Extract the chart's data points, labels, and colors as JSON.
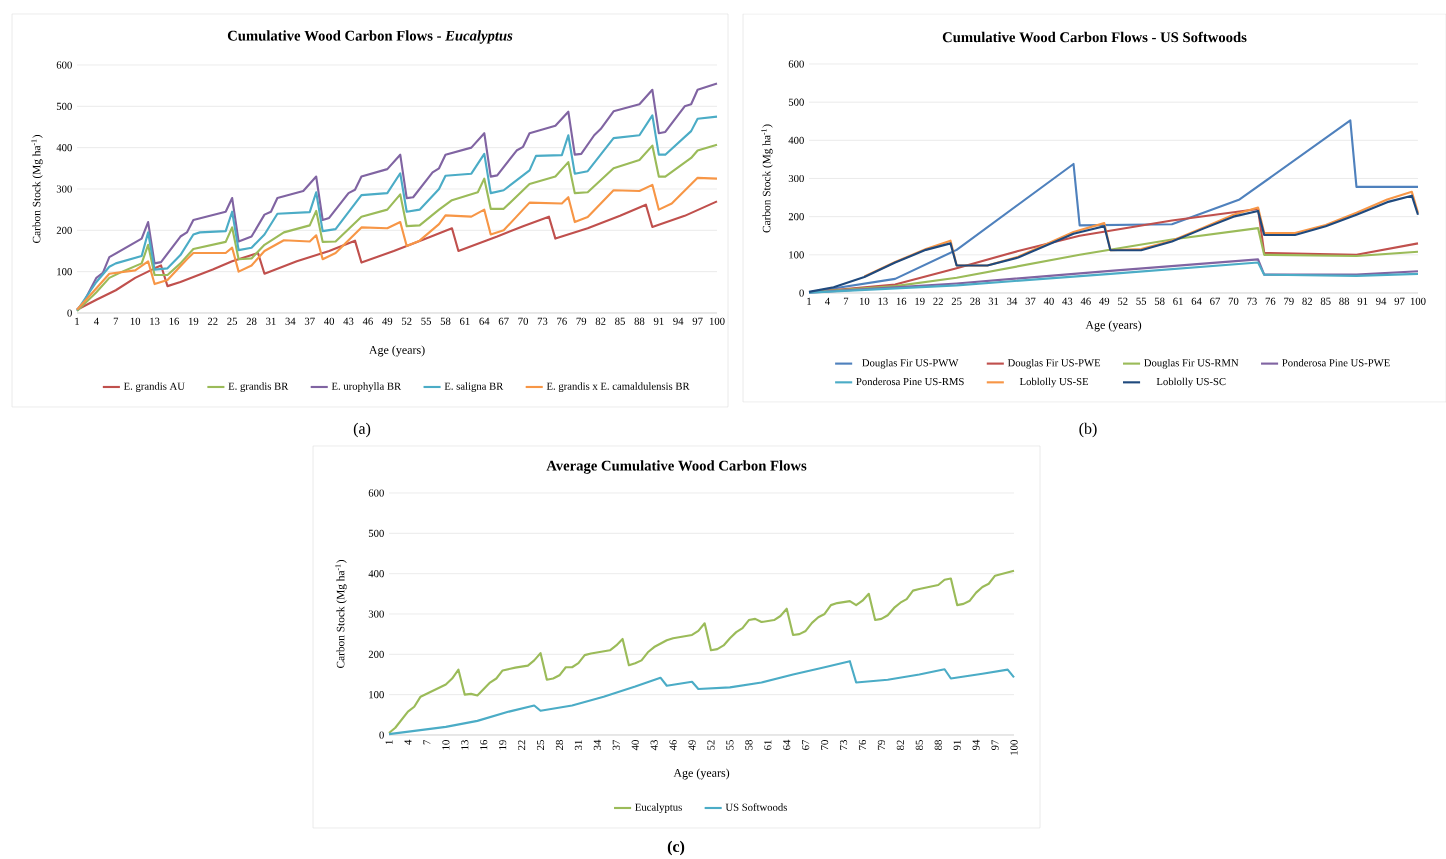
{
  "chart_data": [
    {
      "type": "line",
      "title": "Cumulative Wood Carbon Flows - *Eucalyptus*",
      "xlabel": "Age (years)",
      "ylabel": "Carbon Stock (Mg ha$^{-1}$)",
      "xlim": [
        1,
        100
      ],
      "ylim": [
        0,
        600
      ],
      "xticks": [
        1,
        4,
        7,
        10,
        13,
        16,
        19,
        22,
        25,
        28,
        31,
        34,
        37,
        40,
        43,
        46,
        49,
        52,
        55,
        58,
        61,
        64,
        67,
        70,
        73,
        76,
        79,
        82,
        85,
        88,
        91,
        94,
        97,
        100
      ],
      "yticks": [
        0,
        100,
        200,
        300,
        400,
        500,
        600
      ],
      "grid": "y",
      "legend": "bottom",
      "annotations": [
        "(a)"
      ],
      "series": [
        {
          "name": "E. grandis AU",
          "color": "#c0504d",
          "x": [
            1,
            4,
            7,
            10,
            13,
            14,
            15,
            17,
            22,
            25,
            29,
            30,
            35,
            40,
            44,
            45,
            50,
            55,
            59,
            60,
            66,
            70,
            74,
            75,
            80,
            85,
            89,
            90,
            95,
            100
          ],
          "values": [
            8,
            32,
            55,
            85,
            108,
            115,
            65,
            75,
            105,
            125,
            145,
            95,
            125,
            150,
            175,
            122,
            150,
            180,
            205,
            150,
            185,
            210,
            233,
            180,
            205,
            235,
            262,
            208,
            235,
            270
          ]
        },
        {
          "name": "E. grandis BR",
          "color": "#9bbb59",
          "x": [
            1,
            4,
            6,
            8,
            11,
            12,
            13,
            15,
            17,
            19,
            24,
            25,
            26,
            28,
            30,
            33,
            37,
            38,
            39,
            41,
            45,
            49,
            51,
            52,
            54,
            57,
            59,
            63,
            64,
            65,
            67,
            71,
            75,
            77,
            78,
            80,
            84,
            88,
            90,
            91,
            92,
            96,
            97,
            100
          ],
          "values": [
            5,
            50,
            85,
            100,
            120,
            165,
            92,
            92,
            120,
            155,
            172,
            207,
            130,
            132,
            165,
            195,
            212,
            247,
            172,
            173,
            233,
            250,
            287,
            210,
            212,
            250,
            273,
            292,
            325,
            252,
            252,
            312,
            330,
            365,
            290,
            292,
            350,
            370,
            405,
            330,
            330,
            375,
            393,
            407
          ]
        },
        {
          "name": "E. urophylla BR",
          "color": "#8064a2",
          "x": [
            1,
            2,
            4,
            5,
            6,
            11,
            12,
            13,
            14,
            17,
            18,
            19,
            24,
            25,
            26,
            28,
            30,
            31,
            32,
            36,
            38,
            39,
            40,
            43,
            44,
            45,
            49,
            51,
            52,
            53,
            56,
            57,
            58,
            62,
            64,
            65,
            66,
            69,
            70,
            71,
            75,
            77,
            78,
            79,
            81,
            82,
            84,
            88,
            90,
            91,
            92,
            95,
            96,
            97,
            100
          ],
          "values": [
            8,
            25,
            85,
            97,
            135,
            180,
            220,
            120,
            123,
            185,
            195,
            225,
            245,
            278,
            173,
            185,
            238,
            245,
            278,
            295,
            330,
            225,
            230,
            290,
            298,
            330,
            348,
            383,
            278,
            280,
            340,
            350,
            383,
            400,
            435,
            330,
            333,
            393,
            402,
            435,
            453,
            487,
            383,
            385,
            430,
            445,
            488,
            505,
            540,
            435,
            438,
            500,
            505,
            540,
            555
          ]
        },
        {
          "name": "E. saligna BR",
          "color": "#4bacc6",
          "x": [
            1,
            4,
            6,
            7,
            11,
            12,
            13,
            15,
            17,
            19,
            20,
            24,
            25,
            26,
            28,
            30,
            32,
            37,
            38,
            39,
            41,
            45,
            49,
            51,
            52,
            54,
            57,
            58,
            62,
            64,
            65,
            67,
            71,
            72,
            76,
            77,
            78,
            80,
            84,
            88,
            90,
            91,
            92,
            96,
            97,
            100
          ],
          "values": [
            6,
            75,
            112,
            120,
            138,
            195,
            105,
            108,
            140,
            190,
            195,
            198,
            245,
            152,
            158,
            190,
            240,
            244,
            292,
            198,
            203,
            285,
            290,
            338,
            245,
            250,
            300,
            332,
            337,
            385,
            290,
            297,
            345,
            380,
            382,
            430,
            337,
            343,
            423,
            430,
            478,
            383,
            383,
            440,
            470,
            475
          ]
        },
        {
          "name": "E. grandis x E. camaldulensis BR",
          "color": "#f79646",
          "x": [
            1,
            4,
            6,
            10,
            12,
            13,
            15,
            18,
            19,
            24,
            25,
            26,
            28,
            30,
            33,
            37,
            38,
            39,
            41,
            45,
            49,
            51,
            52,
            54,
            57,
            58,
            62,
            64,
            65,
            67,
            71,
            76,
            77,
            78,
            80,
            84,
            88,
            90,
            91,
            93,
            97,
            100
          ],
          "values": [
            8,
            60,
            95,
            103,
            125,
            70,
            80,
            130,
            145,
            145,
            158,
            100,
            115,
            150,
            176,
            173,
            188,
            130,
            145,
            207,
            205,
            220,
            162,
            175,
            215,
            236,
            233,
            250,
            190,
            200,
            267,
            265,
            280,
            220,
            232,
            297,
            295,
            310,
            250,
            265,
            327,
            325
          ]
        }
      ]
    },
    {
      "type": "line",
      "title": "Cumulative Wood Carbon Flows - US Softwoods",
      "xlabel": "Age (years)",
      "ylabel": "Carbon Stock (Mg ha$^{-1}$)",
      "xlim": [
        1,
        100
      ],
      "ylim": [
        0,
        600
      ],
      "xticks": [
        1,
        4,
        7,
        10,
        13,
        16,
        19,
        22,
        25,
        28,
        31,
        34,
        37,
        40,
        43,
        46,
        49,
        52,
        55,
        58,
        61,
        64,
        67,
        70,
        73,
        76,
        79,
        82,
        85,
        88,
        91,
        94,
        97,
        100
      ],
      "yticks": [
        0,
        100,
        200,
        300,
        400,
        500,
        600
      ],
      "grid": "y",
      "legend": "bottom",
      "annotations": [
        "(b)"
      ],
      "series": [
        {
          "name": "Douglas Fir US-PWW",
          "color": "#4f81bd",
          "x": [
            1,
            15,
            25,
            44,
            45,
            60,
            71,
            89,
            90,
            100
          ],
          "values": [
            2,
            37,
            113,
            338,
            177,
            180,
            245,
            452,
            278,
            278
          ]
        },
        {
          "name": "Douglas Fir US-PWE",
          "color": "#c0504d",
          "x": [
            1,
            15,
            25,
            35,
            45,
            60,
            74,
            75,
            90,
            100
          ],
          "values": [
            2,
            22,
            65,
            110,
            150,
            190,
            220,
            105,
            100,
            130
          ]
        },
        {
          "name": "Douglas Fir US-RMN",
          "color": "#9bbb59",
          "x": [
            1,
            15,
            25,
            45,
            60,
            74,
            75,
            90,
            100
          ],
          "values": [
            2,
            18,
            40,
            100,
            140,
            170,
            100,
            97,
            108
          ]
        },
        {
          "name": "Ponderosa Pine US-PWE",
          "color": "#8064a2",
          "x": [
            1,
            25,
            50,
            74,
            75,
            90,
            100
          ],
          "values": [
            1,
            25,
            58,
            88,
            48,
            48,
            57
          ]
        },
        {
          "name": "Ponderosa Pine US-RMS",
          "color": "#4bacc6",
          "x": [
            1,
            25,
            50,
            74,
            75,
            90,
            100
          ],
          "values": [
            1,
            20,
            50,
            80,
            48,
            45,
            50
          ]
        },
        {
          "name": "Loblolly US-SE",
          "color": "#f79646",
          "x": [
            10,
            15,
            20,
            24,
            25,
            30,
            35,
            44,
            49,
            50,
            55,
            60,
            65,
            70,
            74,
            75,
            80,
            85,
            90,
            95,
            99,
            100
          ],
          "values": [
            43,
            81,
            115,
            137,
            72,
            72,
            95,
            160,
            183,
            112,
            115,
            137,
            170,
            205,
            224,
            157,
            157,
            178,
            210,
            245,
            265,
            210
          ]
        },
        {
          "name": "Loblolly US-SC",
          "color": "#1f497d",
          "x": [
            1,
            5,
            10,
            15,
            20,
            24,
            25,
            30,
            35,
            44,
            49,
            50,
            55,
            60,
            65,
            70,
            74,
            75,
            80,
            85,
            90,
            95,
            99,
            100
          ],
          "values": [
            3,
            15,
            42,
            80,
            113,
            130,
            72,
            72,
            93,
            155,
            175,
            112,
            112,
            135,
            168,
            200,
            215,
            152,
            152,
            175,
            205,
            238,
            255,
            205
          ]
        }
      ]
    },
    {
      "type": "line",
      "title": "Average Cumulative Wood Carbon Flows",
      "xlabel": "Age (years)",
      "ylabel": "Carbon Stock (Mg ha$^{-1}$)",
      "xlim": [
        1,
        100
      ],
      "ylim": [
        0,
        600
      ],
      "xticks": [
        1,
        4,
        7,
        10,
        13,
        16,
        19,
        22,
        25,
        28,
        31,
        34,
        37,
        40,
        43,
        46,
        49,
        52,
        55,
        58,
        61,
        64,
        67,
        70,
        73,
        76,
        79,
        82,
        85,
        88,
        91,
        94,
        97,
        100
      ],
      "yticks": [
        0,
        100,
        200,
        300,
        400,
        500,
        600
      ],
      "grid": "y",
      "legend": "bottom",
      "annotations": [
        "(c)"
      ],
      "series": [
        {
          "name": "Eucalyptus",
          "color": "#9bbb59",
          "x": [
            1,
            2,
            4,
            5,
            6,
            10,
            11,
            12,
            13,
            14,
            15,
            17,
            18,
            19,
            21,
            23,
            24,
            25,
            26,
            27,
            28,
            29,
            30,
            31,
            32,
            33,
            36,
            37,
            38,
            39,
            40,
            41,
            42,
            43,
            45,
            46,
            49,
            50,
            51,
            52,
            53,
            54,
            55,
            56,
            57,
            58,
            59,
            60,
            62,
            63,
            64,
            65,
            66,
            67,
            68,
            69,
            70,
            71,
            72,
            74,
            75,
            76,
            77,
            78,
            79,
            80,
            81,
            82,
            83,
            84,
            85,
            88,
            89,
            90,
            91,
            92,
            93,
            94,
            95,
            96,
            97,
            100
          ],
          "values": [
            5,
            18,
            58,
            70,
            95,
            125,
            140,
            162,
            100,
            102,
            98,
            130,
            140,
            160,
            167,
            172,
            185,
            203,
            137,
            140,
            148,
            168,
            168,
            178,
            198,
            202,
            210,
            222,
            238,
            173,
            178,
            185,
            205,
            218,
            235,
            240,
            248,
            258,
            277,
            210,
            213,
            222,
            240,
            255,
            265,
            285,
            288,
            280,
            285,
            295,
            313,
            248,
            250,
            258,
            278,
            292,
            300,
            322,
            327,
            332,
            322,
            333,
            350,
            285,
            288,
            297,
            315,
            328,
            337,
            358,
            362,
            372,
            385,
            388,
            322,
            325,
            333,
            353,
            367,
            375,
            395,
            407
          ]
        },
        {
          "name": "US Softwoods",
          "color": "#4bacc6",
          "x": [
            1,
            10,
            15,
            20,
            24,
            25,
            30,
            35,
            40,
            44,
            45,
            49,
            50,
            55,
            60,
            65,
            70,
            74,
            75,
            80,
            85,
            89,
            90,
            95,
            99,
            100
          ],
          "values": [
            2,
            20,
            35,
            58,
            73,
            60,
            73,
            95,
            120,
            142,
            122,
            132,
            114,
            118,
            130,
            150,
            168,
            183,
            130,
            137,
            150,
            163,
            140,
            152,
            162,
            143
          ]
        }
      ]
    }
  ]
}
